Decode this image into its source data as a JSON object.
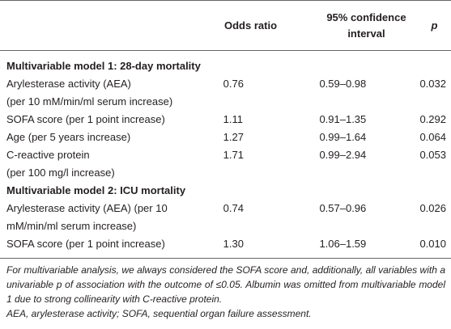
{
  "table": {
    "columns": [
      "Odds ratio",
      "95% confidence interval",
      "p"
    ],
    "sections": [
      {
        "title": "Multivariable model 1: 28-day mortality",
        "rows": [
          {
            "variable": [
              "Arylesterase activity (AEA)",
              "(per 10 mM/min/ml serum increase)"
            ],
            "odds_ratio": "0.76",
            "ci": "0.59–0.98",
            "p": "0.032"
          },
          {
            "variable": [
              "SOFA score (per 1 point increase)"
            ],
            "odds_ratio": "1.11",
            "ci": "0.91–1.35",
            "p": "0.292"
          },
          {
            "variable": [
              "Age (per 5 years increase)"
            ],
            "odds_ratio": "1.27",
            "ci": "0.99–1.64",
            "p": "0.064"
          },
          {
            "variable": [
              "C-reactive protein",
              "(per 100 mg/l increase)"
            ],
            "odds_ratio": "1.71",
            "ci": "0.99–2.94",
            "p": "0.053"
          }
        ]
      },
      {
        "title": "Multivariable model 2: ICU mortality",
        "rows": [
          {
            "variable": [
              "Arylesterase activity (AEA) (per 10",
              "mM/min/ml serum increase)"
            ],
            "odds_ratio": "0.74",
            "ci": "0.57–0.96",
            "p": "0.026"
          },
          {
            "variable": [
              "SOFA score (per 1 point increase)"
            ],
            "odds_ratio": "1.30",
            "ci": "1.06–1.59",
            "p": "0.010"
          }
        ]
      }
    ],
    "footnotes": [
      "For multivariable analysis, we always considered the SOFA score and, additionally, all variables with a univariable p of association with the outcome of ≤0.05. Albumin was omitted from multivariable model 1 due to strong collinearity with C-reactive protein.",
      "AEA, arylesterase activity; SOFA, sequential organ failure assessment."
    ]
  }
}
